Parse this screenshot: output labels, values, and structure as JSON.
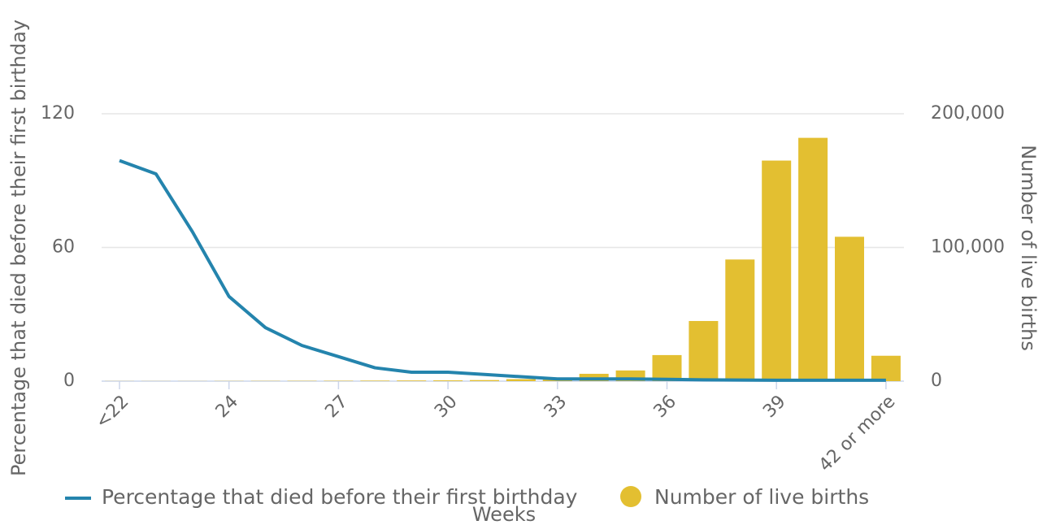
{
  "chart_data": {
    "type": "bar_line",
    "x_label": "Weeks",
    "y_label": "Percentage that died before their first birthday",
    "y2_label": "Number of live births",
    "categories": [
      "<22",
      null,
      null,
      "24",
      null,
      null,
      "27",
      null,
      null,
      "30",
      null,
      null,
      "33",
      null,
      null,
      "36",
      null,
      null,
      "39",
      null,
      null,
      "42 or more"
    ],
    "series": [
      {
        "name": "Percentage that died before their first birthday",
        "type": "line",
        "axis": "y",
        "color": "#2484ad",
        "values": [
          99,
          93,
          67,
          38,
          24,
          16,
          11,
          6,
          4,
          4,
          3,
          2,
          1,
          1,
          1,
          0.8,
          0.6,
          0.5,
          0.4,
          0.4,
          0.4,
          0.4
        ]
      },
      {
        "name": "Number of live births",
        "type": "bar",
        "axis": "y2",
        "color": "#e3bf31",
        "values": [
          100,
          100,
          100,
          150,
          200,
          250,
          300,
          400,
          500,
          600,
          800,
          1500,
          2500,
          5500,
          8000,
          19500,
          45000,
          91000,
          165000,
          182000,
          108000,
          19000
        ]
      }
    ],
    "ylim": [
      0,
      120
    ],
    "yticks": [
      0,
      60,
      120
    ],
    "y2lim": [
      0,
      200000
    ],
    "y2ticks": [
      0,
      {
        "value": 100000,
        "label": "100,000"
      },
      {
        "value": 200000,
        "label": "200,000"
      }
    ],
    "grid": true,
    "legend": "bottom"
  }
}
